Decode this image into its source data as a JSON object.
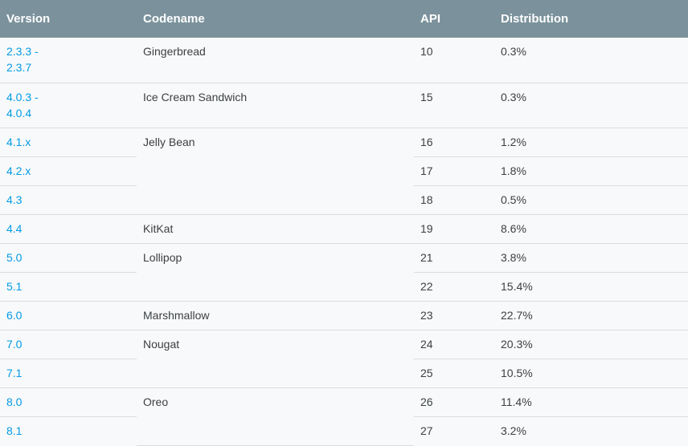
{
  "headers": {
    "version": "Version",
    "codename": "Codename",
    "api": "API",
    "distribution": "Distribution"
  },
  "rows": [
    {
      "version": "2.3.3 - 2.3.7",
      "codename": "Gingerbread",
      "api": "10",
      "distribution": "0.3%"
    },
    {
      "version": "4.0.3 - 4.0.4",
      "codename": "Ice Cream Sandwich",
      "api": "15",
      "distribution": "0.3%"
    },
    {
      "version": "4.1.x",
      "codename": "Jelly Bean",
      "api": "16",
      "distribution": "1.2%"
    },
    {
      "version": "4.2.x",
      "codename": "",
      "api": "17",
      "distribution": "1.8%"
    },
    {
      "version": "4.3",
      "codename": "",
      "api": "18",
      "distribution": "0.5%"
    },
    {
      "version": "4.4",
      "codename": "KitKat",
      "api": "19",
      "distribution": "8.6%"
    },
    {
      "version": "5.0",
      "codename": "Lollipop",
      "api": "21",
      "distribution": "3.8%"
    },
    {
      "version": "5.1",
      "codename": "",
      "api": "22",
      "distribution": "15.4%"
    },
    {
      "version": "6.0",
      "codename": "Marshmallow",
      "api": "23",
      "distribution": "22.7%"
    },
    {
      "version": "7.0",
      "codename": "Nougat",
      "api": "24",
      "distribution": "20.3%"
    },
    {
      "version": "7.1",
      "codename": "",
      "api": "25",
      "distribution": "10.5%"
    },
    {
      "version": "8.0",
      "codename": "Oreo",
      "api": "26",
      "distribution": "11.4%"
    },
    {
      "version": "8.1",
      "codename": "",
      "api": "27",
      "distribution": "3.2%"
    }
  ],
  "colors": {
    "header_bg": "#7b929c",
    "link": "#039be5",
    "row_bg": "#f8f9fa",
    "border": "#dadce0"
  }
}
